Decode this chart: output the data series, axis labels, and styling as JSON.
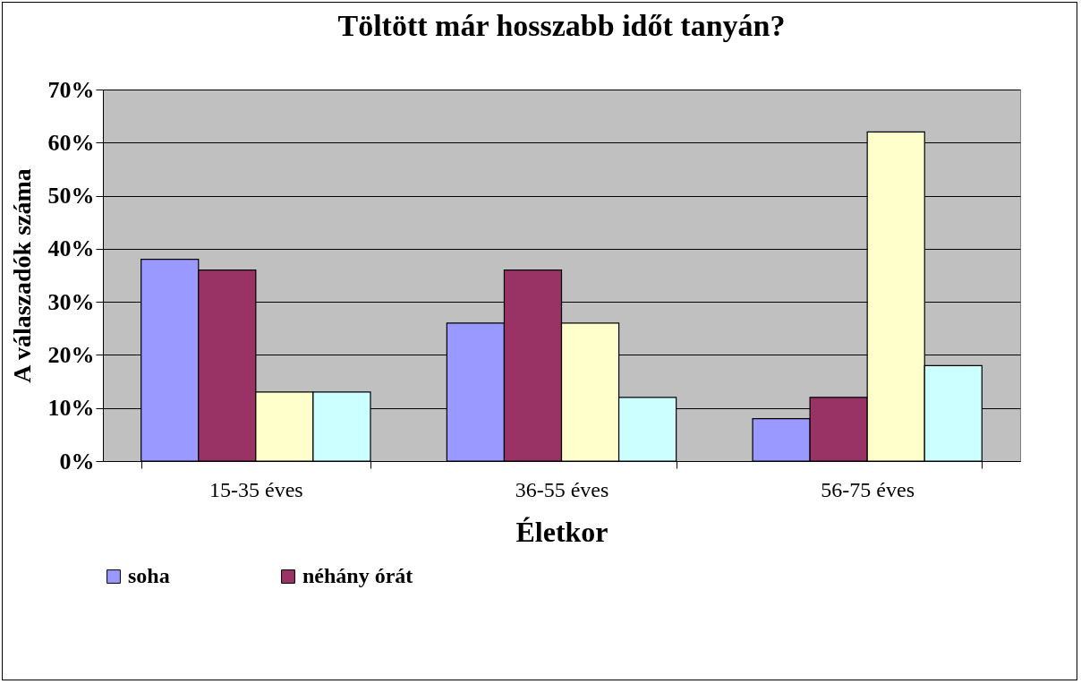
{
  "chart_data": {
    "type": "bar",
    "title": "Töltött már hosszabb időt tanyán?",
    "xlabel": "Életkor",
    "ylabel": "A válaszadók száma",
    "categories": [
      "15-35 éves",
      "36-55 éves",
      "56-75 éves"
    ],
    "series": [
      {
        "name": "soha",
        "color": "#9999ff",
        "values": [
          38,
          26,
          8
        ]
      },
      {
        "name": "néhány órát",
        "color": "#993366",
        "values": [
          36,
          36,
          12
        ]
      },
      {
        "color": "#ffffcc",
        "values": [
          13,
          26,
          62
        ]
      },
      {
        "color": "#ccffff",
        "values": [
          13,
          12,
          18
        ]
      }
    ],
    "ylim": [
      0,
      70
    ],
    "yticks": [
      {
        "value": 0,
        "label": "0%"
      },
      {
        "value": 10,
        "label": "10%"
      },
      {
        "value": 20,
        "label": "20%"
      },
      {
        "value": 30,
        "label": "30%"
      },
      {
        "value": 40,
        "label": "40%"
      },
      {
        "value": 50,
        "label": "50%"
      },
      {
        "value": 60,
        "label": "60%"
      },
      {
        "value": 70,
        "label": "70%"
      }
    ],
    "grid": "y",
    "legend": "bottom"
  }
}
